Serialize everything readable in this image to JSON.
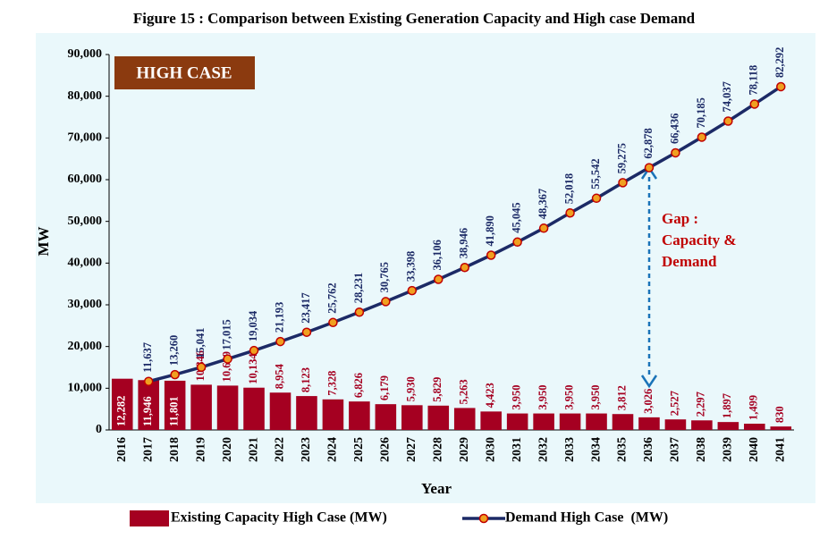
{
  "chart_data": {
    "type": "bar-line",
    "title": "Figure 15 : Comparison between Existing Generation Capacity and High case Demand",
    "x_label": "Year",
    "y_label": "MW",
    "categories": [
      "2016",
      "2017",
      "2018",
      "2019",
      "2020",
      "2021",
      "2022",
      "2023",
      "2024",
      "2025",
      "2026",
      "2027",
      "2028",
      "2029",
      "2030",
      "2031",
      "2032",
      "2033",
      "2034",
      "2035",
      "2036",
      "2037",
      "2038",
      "2039",
      "2040",
      "2041"
    ],
    "series": [
      {
        "name": "Existing Capacity High Case (MW)",
        "kind": "bar",
        "color": "#a50021",
        "values": [
          12282,
          11946,
          11801,
          10846,
          10629,
          10134,
          8954,
          8123,
          7328,
          6826,
          6179,
          5930,
          5829,
          5263,
          4423,
          3950,
          3950,
          3950,
          3950,
          3812,
          3026,
          2527,
          2297,
          1897,
          1499,
          830
        ],
        "value_labels": [
          "12,282",
          "11,946",
          "11,801",
          "10,846",
          "10,629",
          "10,134",
          "8,954",
          "8,123",
          "7,328",
          "6,826",
          "6,179",
          "5,930",
          "5,829",
          "5,263",
          "4,423",
          "3,950",
          "3,950",
          "3,950",
          "3,950",
          "3,812",
          "3,026",
          "2,527",
          "2,297",
          "1,897",
          "1,499",
          "830"
        ]
      },
      {
        "name": "Demand High Case  (MW)",
        "kind": "line",
        "color": "#1c2a66",
        "marker_color": "#f0a020",
        "values": [
          null,
          11637,
          13260,
          15041,
          17015,
          19034,
          21193,
          23417,
          25762,
          28231,
          30765,
          33398,
          36106,
          38946,
          41890,
          45045,
          48367,
          52018,
          55542,
          59275,
          62878,
          66436,
          70185,
          74037,
          78118,
          82292
        ],
        "value_labels": [
          null,
          "11,637",
          "13,260",
          "15,041",
          "17,015",
          "19,034",
          "21,193",
          "23,417",
          "25,762",
          "28,231",
          "30,765",
          "33,398",
          "36,106",
          "38,946",
          "41,890",
          "45,045",
          "48,367",
          "52,018",
          "55,542",
          "59,275",
          "62,878",
          "66,436",
          "70,185",
          "74,037",
          "78,118",
          "82,292"
        ]
      }
    ],
    "ylim": [
      0,
      90000
    ],
    "yticks": [
      0,
      {
        "value": 10000,
        "label": "10,000"
      },
      {
        "value": 20000,
        "label": "20,000"
      },
      {
        "value": 30000,
        "label": "30,000"
      },
      {
        "value": 40000,
        "label": "40,000"
      },
      {
        "value": 50000,
        "label": "50,000"
      },
      {
        "value": 60000,
        "label": "60,000"
      },
      {
        "value": 70000,
        "label": "70,000"
      },
      {
        "value": 80000,
        "label": "80,000"
      },
      {
        "value": 90000,
        "label": "90,000"
      }
    ],
    "case_label": "HIGH CASE",
    "annotation": [
      "Gap :",
      "Capacity &",
      "Demand"
    ],
    "legend": "bottom"
  }
}
